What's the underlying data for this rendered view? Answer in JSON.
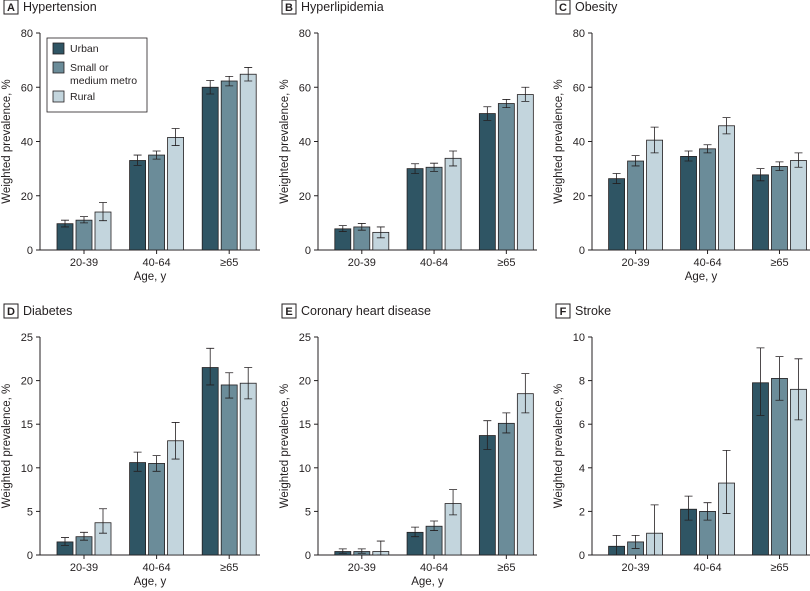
{
  "colors": {
    "Urban": "#2f5564",
    "Small or medium metro": "#6b8c99",
    "Rural": "#c3d5dd"
  },
  "legend": {
    "placement": "top-left of panel A",
    "entries": [
      "Urban",
      "Small or\nmedium metro",
      "Rural"
    ]
  },
  "chart_data": [
    {
      "panel": "A",
      "title": "Hypertension",
      "type": "bar",
      "categories": [
        "20-39",
        "40-64",
        "≥65"
      ],
      "xlabel": "Age, y",
      "ylabel": "Weighted prevalence, %",
      "ylim": [
        0,
        80
      ],
      "yticks": [
        0,
        20,
        40,
        60,
        80
      ],
      "series": [
        {
          "name": "Urban",
          "values": [
            9.7,
            33.0,
            60.0
          ],
          "err_low": [
            8.5,
            31.2,
            57.5
          ],
          "err_high": [
            11.0,
            35.0,
            62.5
          ]
        },
        {
          "name": "Small or medium metro",
          "values": [
            11.0,
            35.0,
            62.3
          ],
          "err_low": [
            10.0,
            33.5,
            60.5
          ],
          "err_high": [
            12.3,
            36.5,
            64.0
          ]
        },
        {
          "name": "Rural",
          "values": [
            14.0,
            41.5,
            64.8
          ],
          "err_low": [
            10.8,
            38.5,
            62.3
          ],
          "err_high": [
            17.5,
            44.8,
            67.3
          ]
        }
      ]
    },
    {
      "panel": "B",
      "title": "Hyperlipidemia",
      "type": "bar",
      "categories": [
        "20-39",
        "40-64",
        "≥65"
      ],
      "xlabel": "",
      "ylabel": "Weighted prevalence, %",
      "ylim": [
        0,
        80
      ],
      "yticks": [
        0,
        20,
        40,
        60,
        80
      ],
      "series": [
        {
          "name": "Urban",
          "values": [
            7.8,
            30.0,
            50.3
          ],
          "err_low": [
            6.8,
            28.2,
            47.8
          ],
          "err_high": [
            9.0,
            31.8,
            52.8
          ]
        },
        {
          "name": "Small or medium metro",
          "values": [
            8.5,
            30.5,
            54.0
          ],
          "err_low": [
            7.3,
            29.0,
            52.5
          ],
          "err_high": [
            9.8,
            32.0,
            55.5
          ]
        },
        {
          "name": "Rural",
          "values": [
            6.5,
            33.8,
            57.3
          ],
          "err_low": [
            4.5,
            31.0,
            54.8
          ],
          "err_high": [
            8.5,
            36.5,
            60.0
          ]
        }
      ]
    },
    {
      "panel": "C",
      "title": "Obesity",
      "type": "bar",
      "categories": [
        "20-39",
        "40-64",
        "≥65"
      ],
      "xlabel": "Age, y",
      "ylabel": "Weighted prevalence, %",
      "ylim": [
        0,
        80
      ],
      "yticks": [
        0,
        20,
        40,
        60,
        80
      ],
      "series": [
        {
          "name": "Urban",
          "values": [
            26.3,
            34.5,
            27.7
          ],
          "err_low": [
            24.5,
            32.8,
            25.5
          ],
          "err_high": [
            28.2,
            36.5,
            30.0
          ]
        },
        {
          "name": "Small or medium metro",
          "values": [
            32.8,
            37.3,
            30.8
          ],
          "err_low": [
            31.0,
            35.8,
            29.3
          ],
          "err_high": [
            34.8,
            38.8,
            32.5
          ]
        },
        {
          "name": "Rural",
          "values": [
            40.5,
            45.8,
            33.0
          ],
          "err_low": [
            35.8,
            42.8,
            30.5
          ],
          "err_high": [
            45.3,
            48.8,
            35.8
          ]
        }
      ]
    },
    {
      "panel": "D",
      "title": "Diabetes",
      "type": "bar",
      "categories": [
        "20-39",
        "40-64",
        "≥65"
      ],
      "xlabel": "Age, y",
      "ylabel": "Weighted prevalence, %",
      "ylim": [
        0,
        25
      ],
      "yticks": [
        0,
        5,
        10,
        15,
        20,
        25
      ],
      "series": [
        {
          "name": "Urban",
          "values": [
            1.5,
            10.6,
            21.5
          ],
          "err_low": [
            1.1,
            9.6,
            19.5
          ],
          "err_high": [
            2.0,
            11.8,
            23.7
          ]
        },
        {
          "name": "Small or medium metro",
          "values": [
            2.1,
            10.5,
            19.5
          ],
          "err_low": [
            1.7,
            9.6,
            18.0
          ],
          "err_high": [
            2.6,
            11.4,
            20.9
          ]
        },
        {
          "name": "Rural",
          "values": [
            3.7,
            13.1,
            19.7
          ],
          "err_low": [
            2.5,
            11.0,
            17.9
          ],
          "err_high": [
            5.3,
            15.2,
            21.5
          ]
        }
      ]
    },
    {
      "panel": "E",
      "title": "Coronary heart disease",
      "type": "bar",
      "categories": [
        "20-39",
        "40-64",
        "≥65"
      ],
      "xlabel": "Age, y",
      "ylabel": "Weighted prevalence, %",
      "ylim": [
        0,
        25
      ],
      "yticks": [
        0,
        5,
        10,
        15,
        20,
        25
      ],
      "series": [
        {
          "name": "Urban",
          "values": [
            0.4,
            2.6,
            13.7
          ],
          "err_low": [
            0.2,
            2.1,
            12.1
          ],
          "err_high": [
            0.7,
            3.2,
            15.4
          ]
        },
        {
          "name": "Small or medium metro",
          "values": [
            0.4,
            3.3,
            15.1
          ],
          "err_low": [
            0.2,
            2.8,
            14.0
          ],
          "err_high": [
            0.7,
            3.9,
            16.3
          ]
        },
        {
          "name": "Rural",
          "values": [
            0.4,
            5.9,
            18.5
          ],
          "err_low": [
            0.0,
            4.6,
            16.3
          ],
          "err_high": [
            1.6,
            7.5,
            20.8
          ]
        }
      ]
    },
    {
      "panel": "F",
      "title": "Stroke",
      "type": "bar",
      "categories": [
        "20-39",
        "40-64",
        "≥65"
      ],
      "xlabel": "",
      "ylabel": "Weighted prevalence, %",
      "ylim": [
        0,
        10
      ],
      "yticks": [
        0,
        2,
        4,
        6,
        8,
        10
      ],
      "series": [
        {
          "name": "Urban",
          "values": [
            0.4,
            2.1,
            7.9
          ],
          "err_low": [
            0.0,
            1.6,
            6.4
          ],
          "err_high": [
            0.9,
            2.7,
            9.5
          ]
        },
        {
          "name": "Small or medium metro",
          "values": [
            0.6,
            2.0,
            8.1
          ],
          "err_low": [
            0.3,
            1.6,
            7.1
          ],
          "err_high": [
            0.9,
            2.4,
            9.1
          ]
        },
        {
          "name": "Rural",
          "values": [
            1.0,
            3.3,
            7.6
          ],
          "err_low": [
            0.0,
            1.9,
            6.2
          ],
          "err_high": [
            2.3,
            4.8,
            9.0
          ]
        }
      ]
    }
  ]
}
